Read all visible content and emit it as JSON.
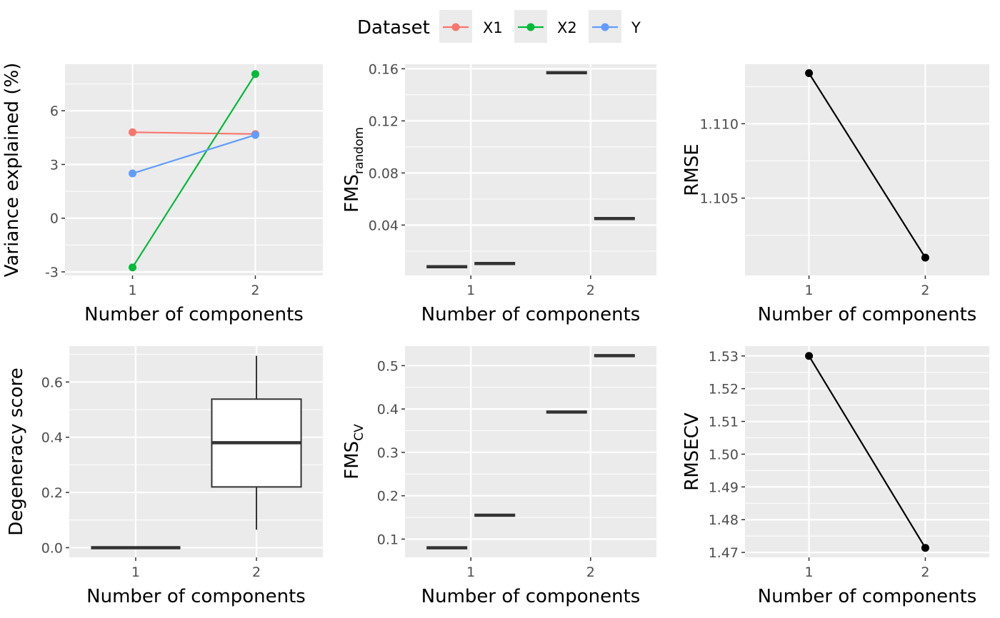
{
  "legend": {
    "title": "Dataset",
    "entries": [
      {
        "label": "X1",
        "color": "#F8766D"
      },
      {
        "label": "X2",
        "color": "#00BA38"
      },
      {
        "label": "Y",
        "color": "#619CFF"
      }
    ]
  },
  "colors": {
    "panel_bg": "#EBEBEB",
    "grid": "#FFFFFF",
    "tick_text": "#4D4D4D",
    "black": "#000000",
    "crossbar": "#333333"
  },
  "chart_data": [
    {
      "type": "line",
      "xlabel": "Number of components",
      "ylabel": "Variance explained (%)",
      "x": [
        1,
        2
      ],
      "xticks": [
        "1",
        "2"
      ],
      "xlim": [
        0.45,
        2.55
      ],
      "ylim": [
        -3.2,
        8.6
      ],
      "yticks": [
        -3,
        0,
        3,
        6
      ],
      "yticklabels": [
        "-3",
        "0",
        "3",
        "6"
      ],
      "series": [
        {
          "name": "X1",
          "color": "#F8766D",
          "values": [
            4.8,
            4.7
          ]
        },
        {
          "name": "X2",
          "color": "#00BA38",
          "values": [
            -2.75,
            8.05
          ]
        },
        {
          "name": "Y",
          "color": "#619CFF",
          "values": [
            2.5,
            4.65
          ]
        }
      ]
    },
    {
      "type": "boxplot",
      "xlabel": "Number of components",
      "ylabel_main": "FMS",
      "ylabel_sub": "random",
      "xticks": [
        "1",
        "2"
      ],
      "xlim": [
        0.45,
        2.55
      ],
      "ylim": [
        0.0013,
        0.1635
      ],
      "yticks": [
        0.04,
        0.08,
        0.12,
        0.16
      ],
      "yticklabels": [
        "0.04",
        "0.08",
        "0.12",
        "0.16"
      ],
      "boxes": [
        {
          "x": 0.8,
          "median": 0.008
        },
        {
          "x": 1.2,
          "median": 0.0105
        },
        {
          "x": 1.8,
          "median": 0.157
        },
        {
          "x": 2.2,
          "median": 0.045
        }
      ]
    },
    {
      "type": "line",
      "xlabel": "Number of components",
      "ylabel": "RMSE",
      "x": [
        1,
        2
      ],
      "xticks": [
        "1",
        "2"
      ],
      "xlim": [
        0.45,
        2.55
      ],
      "ylim": [
        1.0998,
        1.114
      ],
      "yticks": [
        1.105,
        1.11
      ],
      "yticklabels": [
        "1.105",
        "1.110"
      ],
      "series": [
        {
          "color": "#000000",
          "values": [
            1.1134,
            1.101
          ]
        }
      ]
    },
    {
      "type": "boxplot",
      "xlabel": "Number of components",
      "ylabel": "Degeneracy score",
      "xticks": [
        "1",
        "2"
      ],
      "xlim": [
        0.45,
        2.55
      ],
      "ylim": [
        -0.035,
        0.73
      ],
      "yticks": [
        0.0,
        0.2,
        0.4,
        0.6
      ],
      "yticklabels": [
        "0.0",
        "0.2",
        "0.4",
        "0.6"
      ],
      "boxes": [
        {
          "x": 1,
          "min": 0.0,
          "q1": 0.0,
          "median": 0.0,
          "q3": 0.0,
          "max": 0.0
        },
        {
          "x": 2,
          "min": 0.065,
          "q1": 0.22,
          "median": 0.38,
          "q3": 0.538,
          "max": 0.695
        }
      ]
    },
    {
      "type": "boxplot",
      "xlabel": "Number of components",
      "ylabel_main": "FMS",
      "ylabel_sub": "CV",
      "xticks": [
        "1",
        "2"
      ],
      "xlim": [
        0.45,
        2.55
      ],
      "ylim": [
        0.058,
        0.545
      ],
      "yticks": [
        0.1,
        0.2,
        0.3,
        0.4,
        0.5
      ],
      "yticklabels": [
        "0.1",
        "0.2",
        "0.3",
        "0.4",
        "0.5"
      ],
      "boxes": [
        {
          "x": 0.8,
          "median": 0.08
        },
        {
          "x": 1.2,
          "median": 0.155
        },
        {
          "x": 1.8,
          "median": 0.393
        },
        {
          "x": 2.2,
          "median": 0.523
        }
      ]
    },
    {
      "type": "line",
      "xlabel": "Number of components",
      "ylabel": "RMSECV",
      "x": [
        1,
        2
      ],
      "xticks": [
        "1",
        "2"
      ],
      "xlim": [
        0.45,
        2.55
      ],
      "ylim": [
        1.4685,
        1.533
      ],
      "yticks": [
        1.47,
        1.48,
        1.49,
        1.5,
        1.51,
        1.52,
        1.53
      ],
      "yticklabels": [
        "1.47",
        "1.48",
        "1.49",
        "1.50",
        "1.51",
        "1.52",
        "1.53"
      ],
      "series": [
        {
          "color": "#000000",
          "values": [
            1.53,
            1.4714
          ]
        }
      ]
    }
  ]
}
